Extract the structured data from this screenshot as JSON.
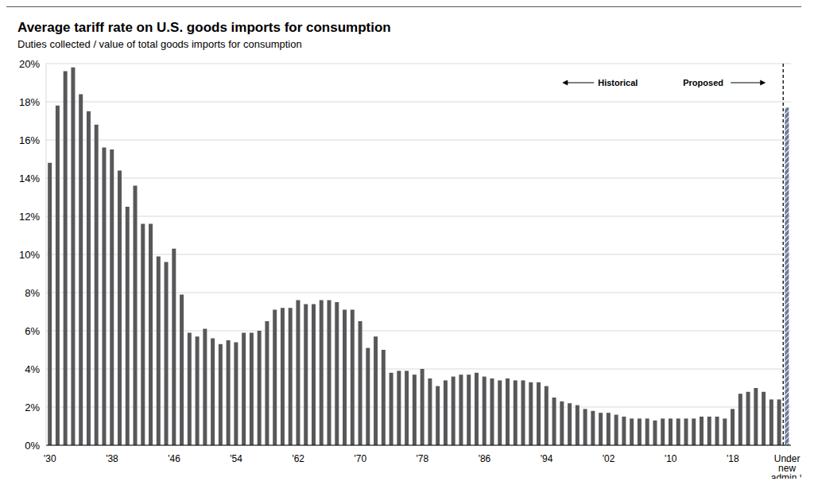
{
  "chart_data": {
    "type": "bar",
    "title": "Average tariff rate on U.S. goods imports for consumption",
    "subtitle": "Duties collected / value of total goods imports for consumption",
    "categories": [
      "'30",
      null,
      null,
      null,
      null,
      null,
      null,
      null,
      "'38",
      null,
      null,
      null,
      null,
      null,
      null,
      null,
      "'46",
      null,
      null,
      null,
      null,
      null,
      null,
      null,
      "'54",
      null,
      null,
      null,
      null,
      null,
      null,
      null,
      "'62",
      null,
      null,
      null,
      null,
      null,
      null,
      null,
      "'70",
      null,
      null,
      null,
      null,
      null,
      null,
      null,
      "'78",
      null,
      null,
      null,
      null,
      null,
      null,
      null,
      "'86",
      null,
      null,
      null,
      null,
      null,
      null,
      null,
      "'94",
      null,
      null,
      null,
      null,
      null,
      null,
      null,
      "'02",
      null,
      null,
      null,
      null,
      null,
      null,
      null,
      "'10",
      null,
      null,
      null,
      null,
      null,
      null,
      null,
      "'18",
      null,
      null,
      null,
      null,
      null,
      null,
      "Under new admin.*"
    ],
    "series": [
      {
        "name": "Historical",
        "color": "#58585a",
        "values": [
          14.8,
          17.8,
          19.6,
          19.8,
          18.4,
          17.5,
          16.8,
          15.6,
          15.5,
          14.4,
          12.5,
          13.6,
          11.6,
          11.6,
          9.9,
          9.6,
          10.3,
          7.9,
          5.9,
          5.7,
          6.1,
          5.6,
          5.3,
          5.5,
          5.4,
          5.9,
          5.9,
          6.0,
          6.5,
          7.1,
          7.2,
          7.2,
          7.6,
          7.4,
          7.4,
          7.6,
          7.6,
          7.5,
          7.1,
          7.1,
          6.5,
          5.1,
          5.7,
          5.0,
          3.8,
          3.9,
          3.9,
          3.7,
          4.0,
          3.5,
          3.1,
          3.4,
          3.6,
          3.7,
          3.7,
          3.8,
          3.6,
          3.5,
          3.4,
          3.5,
          3.4,
          3.4,
          3.3,
          3.3,
          3.1,
          2.5,
          2.3,
          2.2,
          2.1,
          1.9,
          1.8,
          1.7,
          1.7,
          1.6,
          1.5,
          1.4,
          1.4,
          1.4,
          1.3,
          1.4,
          1.4,
          1.4,
          1.4,
          1.4,
          1.5,
          1.5,
          1.5,
          1.4,
          1.9,
          2.7,
          2.8,
          3.0,
          2.8,
          2.4,
          2.4,
          null
        ]
      },
      {
        "name": "Proposed",
        "color": "#6b7a99",
        "values": [
          null,
          null,
          null,
          null,
          null,
          null,
          null,
          null,
          null,
          null,
          null,
          null,
          null,
          null,
          null,
          null,
          null,
          null,
          null,
          null,
          null,
          null,
          null,
          null,
          null,
          null,
          null,
          null,
          null,
          null,
          null,
          null,
          null,
          null,
          null,
          null,
          null,
          null,
          null,
          null,
          null,
          null,
          null,
          null,
          null,
          null,
          null,
          null,
          null,
          null,
          null,
          null,
          null,
          null,
          null,
          null,
          null,
          null,
          null,
          null,
          null,
          null,
          null,
          null,
          null,
          null,
          null,
          null,
          null,
          null,
          null,
          null,
          null,
          null,
          null,
          null,
          null,
          null,
          null,
          null,
          null,
          null,
          null,
          null,
          null,
          null,
          null,
          null,
          null,
          null,
          null,
          null,
          null,
          null,
          null,
          17.7
        ]
      }
    ],
    "ylim": [
      0,
      20
    ],
    "yticks": [
      {
        "value": 0,
        "label": "0%"
      },
      {
        "value": 2,
        "label": "2%"
      },
      {
        "value": 4,
        "label": "4%"
      },
      {
        "value": 6,
        "label": "6%"
      },
      {
        "value": 8,
        "label": "8%"
      },
      {
        "value": 10,
        "label": "10%"
      },
      {
        "value": 12,
        "label": "12%"
      },
      {
        "value": 14,
        "label": "14%"
      },
      {
        "value": 16,
        "label": "16%"
      },
      {
        "value": 18,
        "label": "18%"
      },
      {
        "value": 20,
        "label": "20%"
      }
    ],
    "grid": true
  }
}
